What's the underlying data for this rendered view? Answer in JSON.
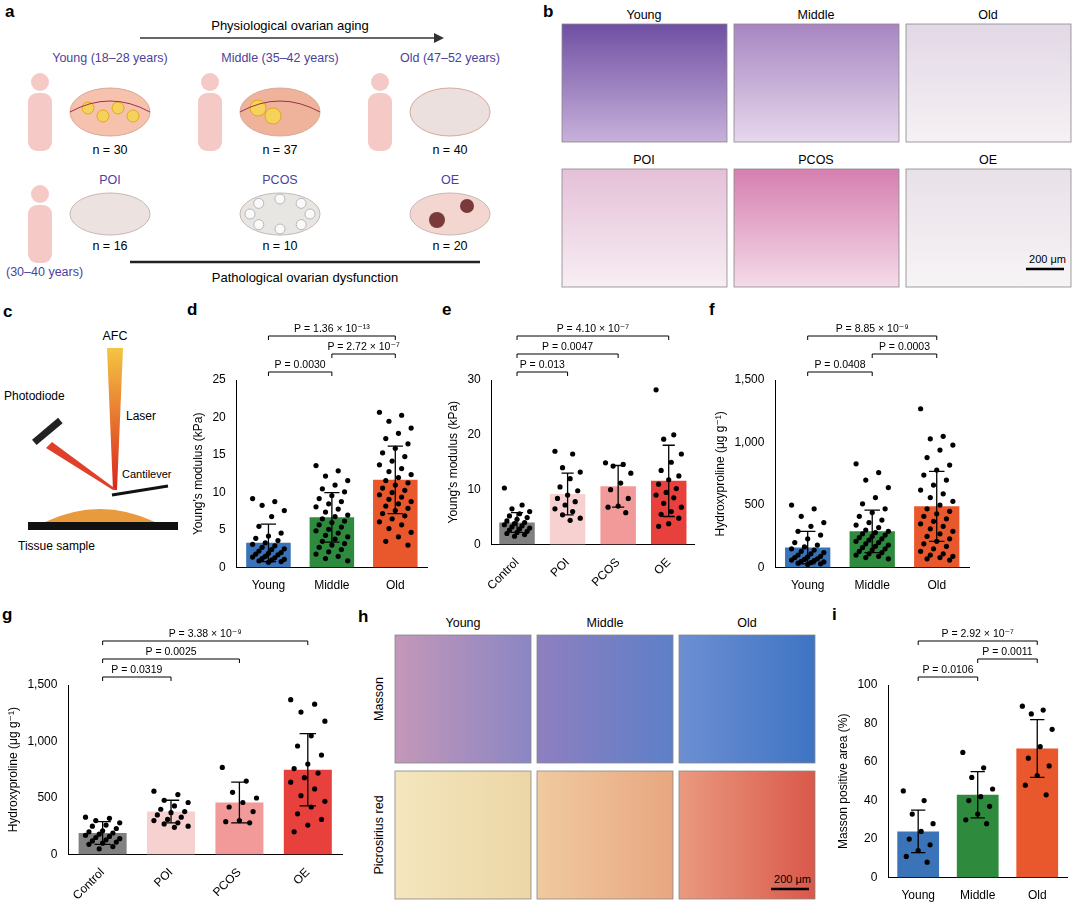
{
  "chart_data": [
    {
      "panel": "d",
      "type": "bar",
      "categories": [
        "Young",
        "Middle",
        "Old"
      ],
      "values": [
        3.3,
        6.7,
        11.7
      ],
      "error": [
        2.5,
        3.3,
        4.5
      ],
      "colors": [
        "#3a73b8",
        "#2e8b3e",
        "#e8582c"
      ],
      "points": [
        [
          9.2,
          8.8,
          8.3,
          7.6,
          6.8,
          5.5,
          4.6,
          4.2,
          3.9,
          3.6,
          3.3,
          3.1,
          2.9,
          2.7,
          2.5,
          2.4,
          2.2,
          2.0,
          1.9,
          1.8,
          1.7,
          1.5,
          1.4,
          1.3,
          1.2,
          1.1,
          1.0,
          0.9,
          0.8,
          0.7
        ],
        [
          13.6,
          12.9,
          12.2,
          11.6,
          11.0,
          10.5,
          10.1,
          9.6,
          9.2,
          8.8,
          8.5,
          8.1,
          7.8,
          7.4,
          7.0,
          6.8,
          6.5,
          6.2,
          6.0,
          5.7,
          5.4,
          5.1,
          4.9,
          4.6,
          4.3,
          4.1,
          3.8,
          3.5,
          3.2,
          3.0,
          2.7,
          2.4,
          2.1,
          1.8,
          1.5,
          1.2,
          0.9
        ],
        [
          20.7,
          20.3,
          19.5,
          18.6,
          17.9,
          17.2,
          16.5,
          15.9,
          15.3,
          14.8,
          14.2,
          13.7,
          13.2,
          12.8,
          12.4,
          12.0,
          11.6,
          11.3,
          11.0,
          10.6,
          10.3,
          10.0,
          9.7,
          9.4,
          9.1,
          8.8,
          8.5,
          8.2,
          7.9,
          7.6,
          7.2,
          6.9,
          6.5,
          6.1,
          5.7,
          5.2,
          4.7,
          4.1,
          3.5,
          3.0
        ]
      ],
      "ylabel": "Young's modulus (kPa)",
      "ylim": [
        0,
        25
      ],
      "yticks": [
        0,
        5,
        10,
        15,
        20,
        25
      ],
      "grid": false,
      "brackets": [
        {
          "from": "Young",
          "to": "Middle",
          "label": "P = 0.0030"
        },
        {
          "from": "Middle",
          "to": "Old",
          "label": "P = 2.72 × 10⁻⁷"
        },
        {
          "from": "Young",
          "to": "Old",
          "label": "P = 1.36 × 10⁻¹³"
        }
      ]
    },
    {
      "panel": "e",
      "type": "bar",
      "categories": [
        "Control",
        "POI",
        "PCOS",
        "OE"
      ],
      "values": [
        4.0,
        9.2,
        10.6,
        11.6
      ],
      "error": [
        1.8,
        3.8,
        3.8,
        6.5
      ],
      "colors": [
        "#808080",
        "#f7d0d0",
        "#f29a9a",
        "#e8403c"
      ],
      "points": [
        [
          10.3,
          7.2,
          6.5,
          6.0,
          5.6,
          5.2,
          4.9,
          4.6,
          4.3,
          4.0,
          3.8,
          3.6,
          3.4,
          3.2,
          3.0,
          2.8,
          2.6,
          2.4,
          2.2,
          2.0,
          1.8,
          1.5
        ],
        [
          17.0,
          16.5,
          14.0,
          13.2,
          12.0,
          10.5,
          9.8,
          9.0,
          8.4,
          7.8,
          7.2,
          6.5,
          6.0,
          5.4,
          4.8,
          4.4
        ],
        [
          14.9,
          14.6,
          14.3,
          13.0,
          11.2,
          10.0,
          8.4,
          7.0,
          6.8,
          5.8
        ],
        [
          28.2,
          20.0,
          19.2,
          16.5,
          15.0,
          13.5,
          12.5,
          11.8,
          11.0,
          10.2,
          9.5,
          9.0,
          8.5,
          7.5,
          6.8,
          6.0,
          5.5,
          4.8,
          3.8,
          3.3
        ]
      ],
      "ylabel": "Young's modulus (kPa)",
      "ylim": [
        0,
        30
      ],
      "yticks": [
        0,
        10,
        20,
        30
      ],
      "grid": false,
      "brackets": [
        {
          "from": "Control",
          "to": "POI",
          "label": "P = 0.013"
        },
        {
          "from": "Control",
          "to": "PCOS",
          "label": "P = 0.0047"
        },
        {
          "from": "Control",
          "to": "OE",
          "label": "P = 4.10 × 10⁻⁷"
        }
      ]
    },
    {
      "panel": "f",
      "type": "bar",
      "categories": [
        "Young",
        "Middle",
        "Old"
      ],
      "values": [
        160,
        290,
        490
      ],
      "error": [
        130,
        170,
        280
      ],
      "colors": [
        "#3a73b8",
        "#2e8b3e",
        "#e8582c"
      ],
      "points": [
        [
          500,
          470,
          410,
          360,
          330,
          290,
          260,
          230,
          200,
          180,
          165,
          150,
          140,
          130,
          120,
          110,
          100,
          90,
          85,
          80,
          70,
          65,
          60,
          55,
          50,
          45,
          40,
          35,
          30,
          25
        ],
        [
          830,
          760,
          700,
          640,
          560,
          510,
          470,
          440,
          410,
          380,
          360,
          340,
          320,
          300,
          290,
          280,
          270,
          260,
          250,
          240,
          230,
          220,
          210,
          200,
          190,
          180,
          170,
          160,
          150,
          140,
          130,
          120,
          110,
          100,
          90,
          80,
          70
        ],
        [
          1270,
          1050,
          1030,
          980,
          940,
          880,
          820,
          780,
          740,
          700,
          660,
          620,
          590,
          560,
          530,
          500,
          470,
          450,
          430,
          410,
          390,
          370,
          350,
          330,
          310,
          290,
          270,
          250,
          230,
          210,
          190,
          170,
          150,
          130,
          110,
          100,
          90,
          80,
          70,
          60
        ]
      ],
      "ylabel": "Hydroxyproline (μg g⁻¹)",
      "ylim": [
        0,
        1500
      ],
      "yticks": [
        0,
        500,
        {
          "value": 1000,
          "label": "1,000"
        },
        {
          "value": 1500,
          "label": "1,500"
        }
      ],
      "grid": false,
      "brackets": [
        {
          "from": "Young",
          "to": "Middle",
          "label": "P = 0.0408"
        },
        {
          "from": "Middle",
          "to": "Old",
          "label": "P = 0.0003"
        },
        {
          "from": "Young",
          "to": "Old",
          "label": "P = 8.85 × 10⁻⁹"
        }
      ]
    },
    {
      "panel": "g",
      "type": "bar",
      "categories": [
        "Control",
        "POI",
        "PCOS",
        "OE"
      ],
      "values": [
        190,
        380,
        460,
        750
      ],
      "error": [
        100,
        100,
        180,
        320
      ],
      "colors": [
        "#808080",
        "#f7d0d0",
        "#f29a9a",
        "#e8403c"
      ],
      "points": [
        [
          330,
          320,
          300,
          280,
          260,
          250,
          230,
          210,
          200,
          190,
          180,
          170,
          160,
          150,
          140,
          130,
          120,
          110,
          100,
          90,
          70,
          50
        ],
        [
          560,
          530,
          480,
          460,
          430,
          400,
          380,
          370,
          350,
          330,
          310,
          300,
          280,
          270,
          250,
          240
        ],
        [
          770,
          650,
          550,
          500,
          460,
          420,
          380,
          300,
          290,
          280
        ],
        [
          1370,
          1330,
          1260,
          1180,
          1050,
          960,
          880,
          800,
          760,
          720,
          680,
          640,
          580,
          520,
          470,
          420,
          360,
          310,
          260,
          200
        ]
      ],
      "ylabel": "Hydroxyproline (μg g⁻¹)",
      "ylim": [
        0,
        1500
      ],
      "yticks": [
        0,
        500,
        {
          "value": 1000,
          "label": "1,000"
        },
        {
          "value": 1500,
          "label": "1,500"
        }
      ],
      "grid": false,
      "brackets": [
        {
          "from": "Control",
          "to": "POI",
          "label": "P = 0.0319"
        },
        {
          "from": "Control",
          "to": "PCOS",
          "label": "P = 0.0025"
        },
        {
          "from": "Control",
          "to": "OE",
          "label": "P = 3.38 × 10⁻⁹"
        }
      ]
    },
    {
      "panel": "i",
      "type": "bar",
      "categories": [
        "Young",
        "Middle",
        "Old"
      ],
      "values": [
        24,
        43,
        67
      ],
      "error": [
        11,
        12,
        15
      ],
      "colors": [
        "#3a73b8",
        "#2e8b3e",
        "#e8582c"
      ],
      "points": [
        [
          45,
          40,
          33,
          28,
          24,
          20,
          17,
          14,
          11,
          8
        ],
        [
          65,
          57,
          52,
          46,
          42,
          40,
          37,
          33,
          30,
          28
        ],
        [
          89,
          87,
          85,
          77,
          68,
          62,
          58,
          53,
          48,
          43
        ]
      ],
      "ylabel": "Masson positive area (%)",
      "ylim": [
        0,
        100
      ],
      "yticks": [
        0,
        20,
        40,
        60,
        80,
        100
      ],
      "grid": false,
      "brackets": [
        {
          "from": "Young",
          "to": "Middle",
          "label": "P = 0.0106"
        },
        {
          "from": "Middle",
          "to": "Old",
          "label": "P = 0.0011"
        },
        {
          "from": "Young",
          "to": "Old",
          "label": "P = 2.92 × 10⁻⁷"
        }
      ]
    }
  ],
  "diagrams": {
    "a": {
      "panel": "a",
      "top_arrow": "Physiological ovarian aging",
      "physiological": [
        {
          "label": "Young (18–28 years)",
          "n": "n = 30"
        },
        {
          "label": "Middle (35–42 years)",
          "n": "n = 37"
        },
        {
          "label": "Old (47–52 years)",
          "n": "n = 40"
        }
      ],
      "pathological": [
        {
          "label": "POI",
          "n": "n = 16"
        },
        {
          "label": "PCOS",
          "n": "n = 10"
        },
        {
          "label": "OE",
          "n": "n = 20"
        }
      ],
      "age_note": "(30–40 years)",
      "bottom_line": "Pathological ovarian dysfunction"
    },
    "b": {
      "panel": "b",
      "tiles": [
        "Young",
        "Middle",
        "Old",
        "POI",
        "PCOS",
        "OE"
      ],
      "scale": "200 μm"
    },
    "c": {
      "panel": "c",
      "afc": "AFC",
      "laser": "Laser",
      "photodiode": "Photodiode",
      "cantilever": "Cantilever",
      "sample": "Tissue sample"
    },
    "h": {
      "panel": "h",
      "columns": [
        "Young",
        "Middle",
        "Old"
      ],
      "rows": [
        "Masson",
        "Picrosirius red"
      ],
      "scale": "200 μm"
    }
  }
}
